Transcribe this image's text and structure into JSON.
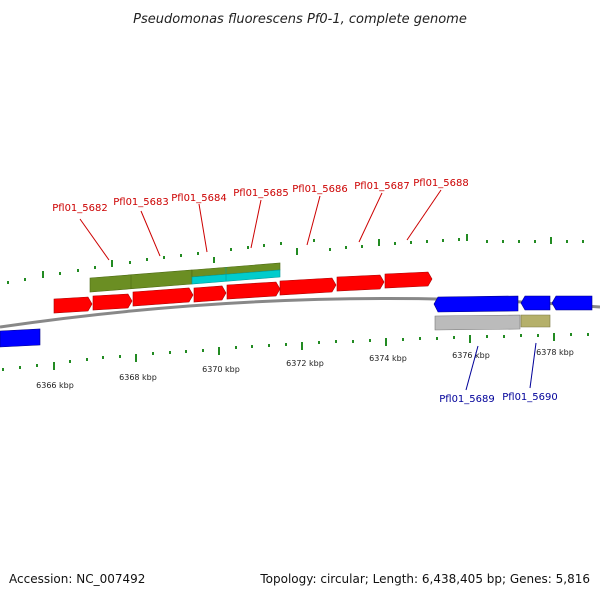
{
  "title": "Pseudomonas fluorescens Pf0-1, complete genome",
  "footer": {
    "accession": "Accession: NC_007492",
    "summary": "Topology: circular; Length: 6,438,405 bp; Genes: 5,816"
  },
  "colors": {
    "forward_cds": "#ff0000",
    "reverse_cds": "#0000ff",
    "gene_olive": "#6b8e23",
    "gene_cyan": "#00cccc",
    "gray_feature": "#bbbbbb",
    "khaki_feature": "#b5b06a",
    "backbone": "#888888",
    "tick": "#228b22",
    "forward_label": "#cc0000",
    "reverse_label": "#000099"
  },
  "axis": {
    "unit": "kbp",
    "labeled_ticks_kbp": [
      6366,
      6368,
      6370,
      6372,
      6374,
      6376,
      6378
    ],
    "tick_labels": [
      "6366 kbp",
      "6368 kbp",
      "6370 kbp",
      "6372 kbp",
      "6374 kbp",
      "6376 kbp",
      "6378 kbp"
    ]
  },
  "forward_labels": [
    "Pfl01_5682",
    "Pfl01_5683",
    "Pfl01_5684",
    "Pfl01_5685",
    "Pfl01_5686",
    "Pfl01_5687",
    "Pfl01_5688"
  ],
  "reverse_labels": [
    "Pfl01_5689",
    "Pfl01_5690"
  ]
}
